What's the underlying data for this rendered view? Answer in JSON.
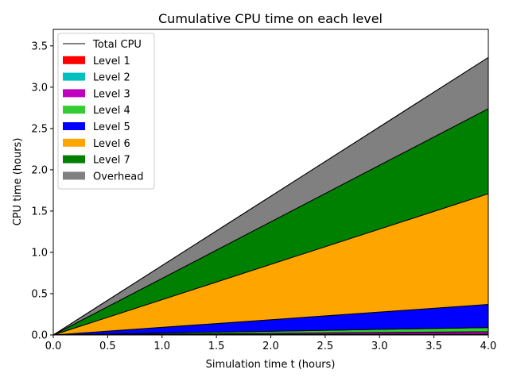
{
  "chart_data": {
    "type": "area",
    "stacked": true,
    "title": "Cumulative CPU time on each level",
    "xlabel": "Simulation time t (hours)",
    "ylabel": "CPU time (hours)",
    "xlim": [
      0,
      4
    ],
    "ylim": [
      0,
      3.7
    ],
    "xticks": [
      0,
      0.5,
      1,
      1.5,
      2,
      2.5,
      3,
      3.5,
      4
    ],
    "xtick_labels": [
      "0.0",
      "0.5",
      "1.0",
      "1.5",
      "2.0",
      "2.5",
      "3.0",
      "3.5",
      "4.0"
    ],
    "yticks": [
      0,
      0.5,
      1,
      1.5,
      2,
      2.5,
      3,
      3.5
    ],
    "ytick_labels": [
      "0.0",
      "0.5",
      "1.0",
      "1.5",
      "2.0",
      "2.5",
      "3.0",
      "3.5"
    ],
    "grid": false,
    "legend_position": "top-left",
    "x": [
      0,
      4
    ],
    "total_cpu": {
      "name": "Total CPU",
      "values": [
        0,
        3.36
      ],
      "color": "#000000"
    },
    "series": [
      {
        "name": "Level 1",
        "values": [
          0,
          0.005
        ],
        "color": "#ff0000"
      },
      {
        "name": "Level 2",
        "values": [
          0,
          0.005
        ],
        "color": "#00bfbf"
      },
      {
        "name": "Level 3",
        "values": [
          0,
          0.03
        ],
        "color": "#bf00bf"
      },
      {
        "name": "Level 4",
        "values": [
          0,
          0.05
        ],
        "color": "#32cd32"
      },
      {
        "name": "Level 5",
        "values": [
          0,
          0.28
        ],
        "color": "#0000ff"
      },
      {
        "name": "Level 6",
        "values": [
          0,
          1.34
        ],
        "color": "#ffa500"
      },
      {
        "name": "Level 7",
        "values": [
          0,
          1.03
        ],
        "color": "#008000"
      },
      {
        "name": "Overhead",
        "values": [
          0,
          0.62
        ],
        "color": "#808080"
      }
    ]
  }
}
